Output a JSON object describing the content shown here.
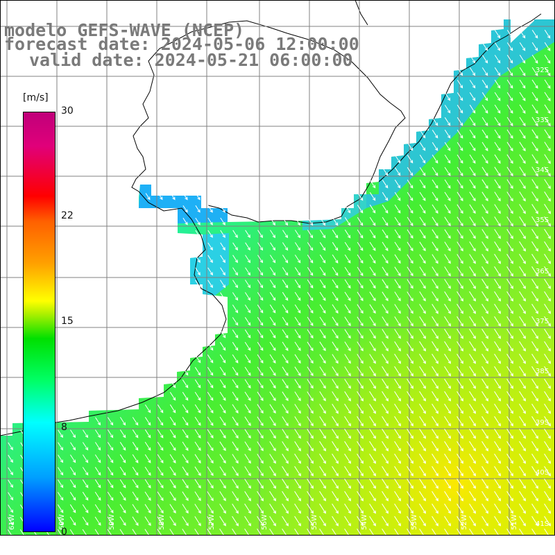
{
  "title": {
    "line1": "modelo GEFS-WAVE (NCEP)",
    "line2": "forecast date: 2024-05-06 12:00:00",
    "line3": "valid date: 2024-05-21 06:00:00"
  },
  "colorbar": {
    "unit": "[m/s]",
    "min": 0,
    "max": 30,
    "ticks": [
      "30",
      "22",
      "15",
      "8",
      "0"
    ],
    "tick_values": [
      30,
      22,
      15,
      8,
      0
    ]
  },
  "lat_labels": [
    "32S",
    "33S",
    "34S",
    "35S",
    "36S",
    "37S",
    "38S",
    "39S",
    "40S",
    "41S"
  ],
  "lon_labels": [
    "61W",
    "60W",
    "59W",
    "58W",
    "57W",
    "56W",
    "55W",
    "54W",
    "53W",
    "52W",
    "51W"
  ],
  "colors": {
    "land": "#ffffff",
    "grid": "#808080",
    "coast": "#000000",
    "arrows": "#ffffff",
    "title": "#7a7a7a"
  },
  "field": {
    "quantity": "wind speed",
    "units": "m/s",
    "direction": "from NW toward SE"
  }
}
